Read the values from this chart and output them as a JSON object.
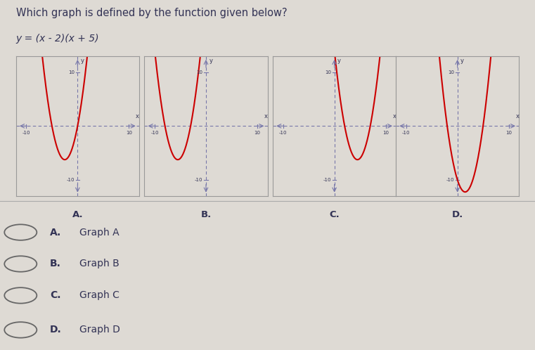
{
  "title_text": "Which graph is defined by the function given below?",
  "formula": "y = (x - 2)(x + 5)",
  "graphs": [
    {
      "label": "A.",
      "roots": [
        -5,
        0
      ]
    },
    {
      "label": "B.",
      "roots": [
        -8,
        -3
      ]
    },
    {
      "label": "C.",
      "roots": [
        2,
        7
      ]
    },
    {
      "label": "D.",
      "roots": [
        -2,
        5
      ]
    }
  ],
  "answer_choices": [
    {
      "letter": "A.",
      "text": "Graph A"
    },
    {
      "letter": "B.",
      "text": "Graph B"
    },
    {
      "letter": "C.",
      "text": "Graph C"
    },
    {
      "letter": "D.",
      "text": "Graph D"
    }
  ],
  "curve_color": "#cc0000",
  "axis_color": "#7777aa",
  "border_color": "#999999",
  "bg_color": "#dedad4",
  "text_color": "#333355",
  "xlim": [
    -12,
    12
  ],
  "ylim": [
    -13,
    13
  ],
  "tick_vals": [
    -10,
    10
  ]
}
